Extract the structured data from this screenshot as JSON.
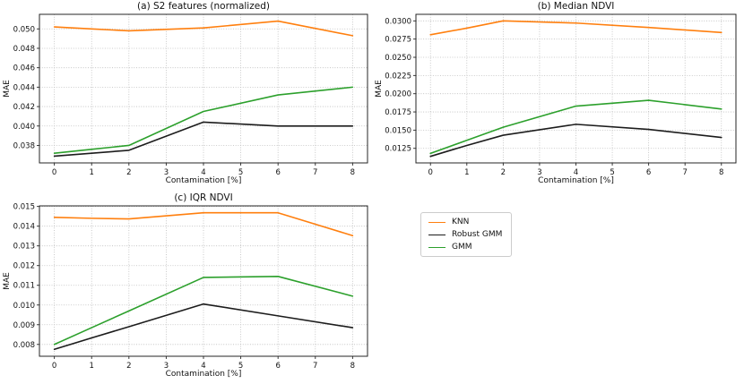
{
  "figure": {
    "background": "#ffffff"
  },
  "legend": {
    "position": "lower-right-quadrant",
    "entries": [
      {
        "label": "KNN",
        "color": "#ff7f0e"
      },
      {
        "label": "Robust GMM",
        "color": "#1c1c1c"
      },
      {
        "label": "GMM",
        "color": "#2ca02c"
      }
    ]
  },
  "chart_data": [
    {
      "type": "line",
      "title": "(a) S2 features (normalized)",
      "xlabel": "Contamination [%]",
      "ylabel": "MAE",
      "x": [
        0,
        1,
        2,
        4,
        6,
        8
      ],
      "series": [
        {
          "name": "KNN",
          "color": "#ff7f0e",
          "values": [
            0.0502,
            0.05,
            0.0498,
            0.0501,
            0.0508,
            0.0493
          ]
        },
        {
          "name": "Robust GMM",
          "color": "#1c1c1c",
          "values": [
            0.0369,
            0.0372,
            0.0375,
            0.0404,
            0.04,
            0.04
          ]
        },
        {
          "name": "GMM",
          "color": "#2ca02c",
          "values": [
            0.0372,
            0.0376,
            0.038,
            0.0415,
            0.0432,
            0.044
          ]
        }
      ],
      "xlim": [
        -0.4,
        8.4
      ],
      "ylim": [
        0.0362,
        0.0515
      ],
      "xticks": [
        0,
        1,
        2,
        3,
        4,
        5,
        6,
        7,
        8
      ],
      "xtick_labels": [
        "0",
        "1",
        "2",
        "3",
        "4",
        "5",
        "6",
        "7",
        "8"
      ],
      "yticks": [
        0.038,
        0.04,
        0.042,
        0.044,
        0.046,
        0.048,
        0.05
      ],
      "ytick_labels": [
        "0.038",
        "0.040",
        "0.042",
        "0.044",
        "0.046",
        "0.048",
        "0.050"
      ],
      "grid": "dotted"
    },
    {
      "type": "line",
      "title": "(b) Median NDVI",
      "xlabel": "Contamination [%]",
      "ylabel": "MAE",
      "x": [
        0,
        1,
        2,
        4,
        6,
        8
      ],
      "series": [
        {
          "name": "KNN",
          "color": "#ff7f0e",
          "values": [
            0.0281,
            0.029,
            0.03,
            0.0297,
            0.0291,
            0.0284
          ]
        },
        {
          "name": "Robust GMM",
          "color": "#1c1c1c",
          "values": [
            0.0114,
            0.0129,
            0.0143,
            0.0158,
            0.0151,
            0.014
          ]
        },
        {
          "name": "GMM",
          "color": "#2ca02c",
          "values": [
            0.0118,
            0.0136,
            0.0154,
            0.0183,
            0.0191,
            0.0179
          ]
        }
      ],
      "xlim": [
        -0.4,
        8.4
      ],
      "ylim": [
        0.0105,
        0.0309
      ],
      "xticks": [
        0,
        1,
        2,
        3,
        4,
        5,
        6,
        7,
        8
      ],
      "xtick_labels": [
        "0",
        "1",
        "2",
        "3",
        "4",
        "5",
        "6",
        "7",
        "8"
      ],
      "yticks": [
        0.0125,
        0.015,
        0.0175,
        0.02,
        0.0225,
        0.025,
        0.0275,
        0.03
      ],
      "ytick_labels": [
        "0.0125",
        "0.0150",
        "0.0175",
        "0.0200",
        "0.0225",
        "0.0250",
        "0.0275",
        "0.0300"
      ],
      "grid": "dotted"
    },
    {
      "type": "line",
      "title": "(c) IQR NDVI",
      "xlabel": "Contamination [%]",
      "ylabel": "MAE",
      "x": [
        0,
        1,
        2,
        4,
        6,
        8
      ],
      "series": [
        {
          "name": "KNN",
          "color": "#ff7f0e",
          "values": [
            0.01445,
            0.0144,
            0.01437,
            0.01468,
            0.01468,
            0.01352
          ]
        },
        {
          "name": "Robust GMM",
          "color": "#1c1c1c",
          "values": [
            0.00775,
            0.00833,
            0.0089,
            0.01005,
            0.00945,
            0.00885
          ]
        },
        {
          "name": "GMM",
          "color": "#2ca02c",
          "values": [
            0.008,
            0.00885,
            0.0097,
            0.0114,
            0.01145,
            0.01045
          ]
        }
      ],
      "xlim": [
        -0.4,
        8.4
      ],
      "ylim": [
        0.0074,
        0.01503
      ],
      "xticks": [
        0,
        1,
        2,
        3,
        4,
        5,
        6,
        7,
        8
      ],
      "xtick_labels": [
        "0",
        "1",
        "2",
        "3",
        "4",
        "5",
        "6",
        "7",
        "8"
      ],
      "yticks": [
        0.008,
        0.009,
        0.01,
        0.011,
        0.012,
        0.013,
        0.014,
        0.015
      ],
      "ytick_labels": [
        "0.008",
        "0.009",
        "0.010",
        "0.011",
        "0.012",
        "0.013",
        "0.014",
        "0.015"
      ],
      "grid": "dotted"
    }
  ]
}
